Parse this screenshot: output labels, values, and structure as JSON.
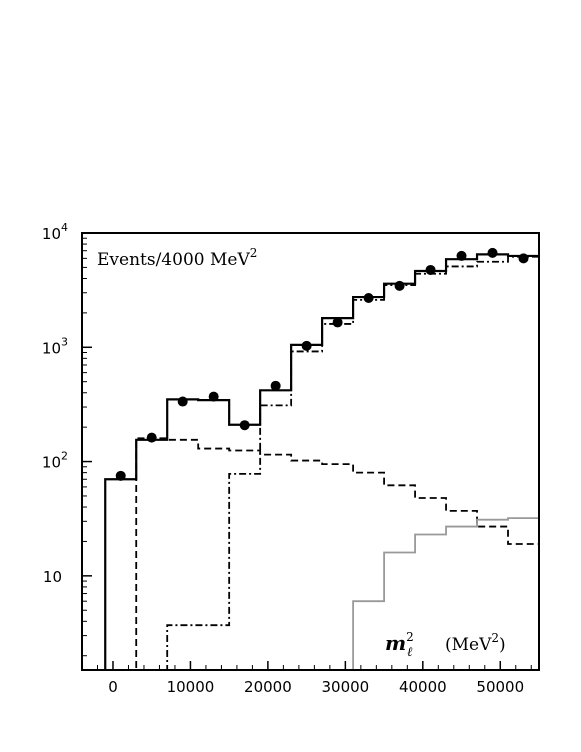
{
  "chart_data": {
    "type": "histogram",
    "yscale": "log",
    "xlim": [
      -4000,
      55000
    ],
    "ylim": [
      1.5,
      10000
    ],
    "bin_edges": [
      -1000,
      3000,
      7000,
      11000,
      15000,
      19000,
      23000,
      27000,
      31000,
      35000,
      39000,
      43000,
      47000,
      51000,
      55000
    ],
    "x_ticks": [
      0,
      10000,
      20000,
      30000,
      40000,
      50000
    ],
    "x_tick_labels": [
      "0",
      "10000",
      "20000",
      "30000",
      "40000",
      "50000"
    ],
    "y_ticks": [
      10,
      100,
      1000,
      10000
    ],
    "y_tick_labels": [
      "10",
      "10",
      "10",
      "10"
    ],
    "y_tick_exponents": [
      "",
      "2",
      "3",
      "4"
    ],
    "annotation": {
      "text": "Events/4000 MeV",
      "superscript": "2"
    },
    "axis_label": {
      "symbol": "m",
      "subscript": "ℓ",
      "superscript": "2",
      "unit_open": "(MeV",
      "unit_superscript": "2",
      "unit_close": ")"
    },
    "series": [
      {
        "style": "solid",
        "color": "#000000",
        "values": [
          70,
          155,
          350,
          345,
          210,
          420,
          1050,
          1800,
          2750,
          3600,
          4650,
          5900,
          6500,
          6300
        ]
      },
      {
        "style": "dashed",
        "color": "#000000",
        "values": [
          1.5,
          160,
          155,
          130,
          125,
          115,
          102,
          95,
          80,
          62,
          48,
          37,
          27,
          19
        ]
      },
      {
        "style": "dashdot",
        "color": "#000000",
        "values": [
          1.5,
          1.5,
          3.7,
          3.7,
          78,
          310,
          920,
          1600,
          2600,
          3500,
          4400,
          5100,
          5600,
          6200
        ]
      },
      {
        "style": "solid",
        "color": "#999999",
        "values": [
          1.5,
          1.5,
          1.5,
          1.5,
          1.5,
          1.5,
          1.5,
          1.5,
          6,
          16,
          23,
          27,
          31,
          32
        ]
      }
    ],
    "points": {
      "x": [
        1000,
        5000,
        9000,
        13000,
        17000,
        21000,
        25000,
        29000,
        33000,
        37000,
        41000,
        45000,
        49000,
        53000
      ],
      "y": [
        75,
        162,
        335,
        370,
        208,
        460,
        1030,
        1650,
        2700,
        3450,
        4750,
        6300,
        6700,
        6000
      ]
    }
  }
}
